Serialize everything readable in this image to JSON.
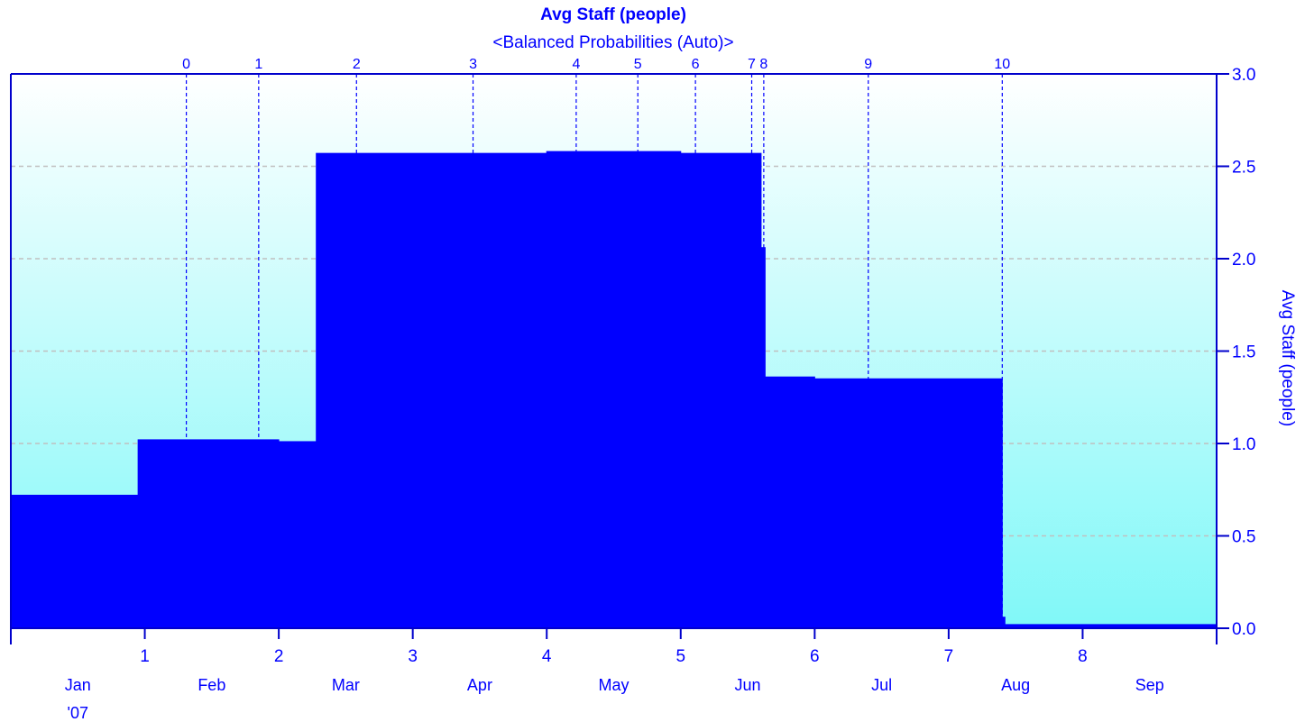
{
  "chart_data": {
    "type": "area",
    "title": "Avg Staff (people)",
    "subtitle": "<Balanced Probabilities (Auto)>",
    "ylabel": "Avg Staff (people)",
    "ylim": [
      0,
      3.0
    ],
    "y_ticks": [
      "0.0",
      "0.5",
      "1.0",
      "1.5",
      "2.0",
      "2.5",
      "3.0"
    ],
    "y_tick_values": [
      0,
      0.5,
      1.0,
      1.5,
      2.0,
      2.5,
      3.0
    ],
    "xlim": [
      0,
      9
    ],
    "x_ticks": [
      "1",
      "2",
      "3",
      "4",
      "5",
      "6",
      "7",
      "8"
    ],
    "x_tick_values": [
      1,
      2,
      3,
      4,
      5,
      6,
      7,
      8
    ],
    "month_labels": [
      {
        "label": "Jan",
        "x": 0.5
      },
      {
        "label": "Feb",
        "x": 1.5
      },
      {
        "label": "Mar",
        "x": 2.5
      },
      {
        "label": "Apr",
        "x": 3.5
      },
      {
        "label": "May",
        "x": 4.5
      },
      {
        "label": "Jun",
        "x": 5.5
      },
      {
        "label": "Jul",
        "x": 6.5
      },
      {
        "label": "Aug",
        "x": 7.5
      },
      {
        "label": "Sep",
        "x": 8.5
      }
    ],
    "year_label": {
      "label": "'07",
      "x": 0.5
    },
    "milestones": [
      {
        "label": "0",
        "x": 1.31
      },
      {
        "label": "1",
        "x": 1.85
      },
      {
        "label": "2",
        "x": 2.58
      },
      {
        "label": "3",
        "x": 3.45
      },
      {
        "label": "4",
        "x": 4.22
      },
      {
        "label": "5",
        "x": 4.68
      },
      {
        "label": "6",
        "x": 5.11
      },
      {
        "label": "7",
        "x": 5.53
      },
      {
        "label": "8",
        "x": 5.62
      },
      {
        "label": "9",
        "x": 6.4
      },
      {
        "label": "10",
        "x": 7.4
      }
    ],
    "steps": [
      {
        "x0": 0.0,
        "x1": 0.95,
        "y": 0.72
      },
      {
        "x0": 0.95,
        "x1": 2.0,
        "y": 1.02
      },
      {
        "x0": 2.0,
        "x1": 2.28,
        "y": 1.01
      },
      {
        "x0": 2.28,
        "x1": 4.0,
        "y": 2.57
      },
      {
        "x0": 4.0,
        "x1": 5.0,
        "y": 2.58
      },
      {
        "x0": 5.0,
        "x1": 5.6,
        "y": 2.57
      },
      {
        "x0": 5.6,
        "x1": 5.63,
        "y": 2.06
      },
      {
        "x0": 5.63,
        "x1": 6.0,
        "y": 1.36
      },
      {
        "x0": 6.0,
        "x1": 7.4,
        "y": 1.35
      },
      {
        "x0": 7.4,
        "x1": 7.42,
        "y": 0.06
      },
      {
        "x0": 7.42,
        "x1": 9.0,
        "y": 0.02
      }
    ],
    "grid": true,
    "colors": {
      "fill": "#0000ff",
      "axis": "#0000cc",
      "text": "#0000ff",
      "grid": "#c0c0c0",
      "bg_top": "#ffffff",
      "bg_bottom": "#80f8f8"
    }
  }
}
